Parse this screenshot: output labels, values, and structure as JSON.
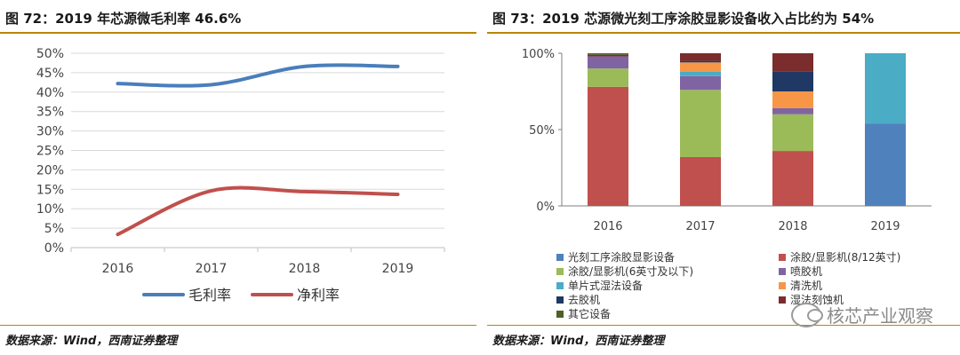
{
  "left": {
    "title": "图 72：2019 年芯源微毛利率 46.6%",
    "source": "数据来源：Wind，西南证券整理"
  },
  "right": {
    "title": "图 73：2019 芯源微光刻工序涂胶显影设备收入占比约为 54%",
    "source": "数据来源：Wind，西南证券整理"
  },
  "watermark": {
    "text": "核芯产业观察",
    "icon": "wechat-icon"
  },
  "chart_data": [
    {
      "type": "line",
      "title": "图 72：2019 年芯源微毛利率 46.6%",
      "x": [
        "2016",
        "2017",
        "2018",
        "2019"
      ],
      "ylim": [
        0,
        50
      ],
      "yticks": [
        "0%",
        "5%",
        "10%",
        "15%",
        "20%",
        "25%",
        "30%",
        "35%",
        "40%",
        "45%",
        "50%"
      ],
      "series": [
        {
          "name": "毛利率",
          "values": [
            42.2,
            41.9,
            46.6,
            46.6
          ],
          "color": "#4a7ebb"
        },
        {
          "name": "净利率",
          "values": [
            3.4,
            14.6,
            14.4,
            13.7
          ],
          "color": "#c0504d"
        }
      ],
      "grid": "horizontal",
      "legend": "bottom"
    },
    {
      "type": "bar",
      "stacked": true,
      "title": "图 73：2019 芯源微光刻工序涂胶显影设备收入占比约为 54%",
      "categories": [
        "2016",
        "2017",
        "2018",
        "2019"
      ],
      "ylim": [
        0,
        100
      ],
      "yticks": [
        "0%",
        "50%",
        "100%"
      ],
      "series": [
        {
          "name": "光刻工序涂胶显影设备",
          "color": "#4f81bd",
          "values": [
            0,
            0,
            0,
            54
          ]
        },
        {
          "name": "涂胶/显影机(8/12英寸)",
          "color": "#c0504d",
          "values": [
            78,
            32,
            36,
            0
          ]
        },
        {
          "name": "涂胶/显影机(6英寸及以下)",
          "color": "#9bbb59",
          "values": [
            12,
            44,
            24,
            0
          ]
        },
        {
          "name": "喷胶机",
          "color": "#8064a2",
          "values": [
            8,
            9,
            4,
            0
          ]
        },
        {
          "name": "单片式湿法设备",
          "color": "#4bacc6",
          "values": [
            0,
            3,
            0,
            46
          ]
        },
        {
          "name": "清洗机",
          "color": "#f79646",
          "values": [
            0,
            6,
            11,
            0
          ]
        },
        {
          "name": "去胶机",
          "color": "#1f3864",
          "values": [
            0,
            1,
            13,
            0
          ]
        },
        {
          "name": "湿法刻蚀机",
          "color": "#7b2c2c",
          "values": [
            1,
            5,
            12,
            0
          ]
        },
        {
          "name": "其它设备",
          "color": "#4f6228",
          "values": [
            1,
            0,
            0,
            0
          ]
        }
      ],
      "legend": "bottom"
    }
  ]
}
